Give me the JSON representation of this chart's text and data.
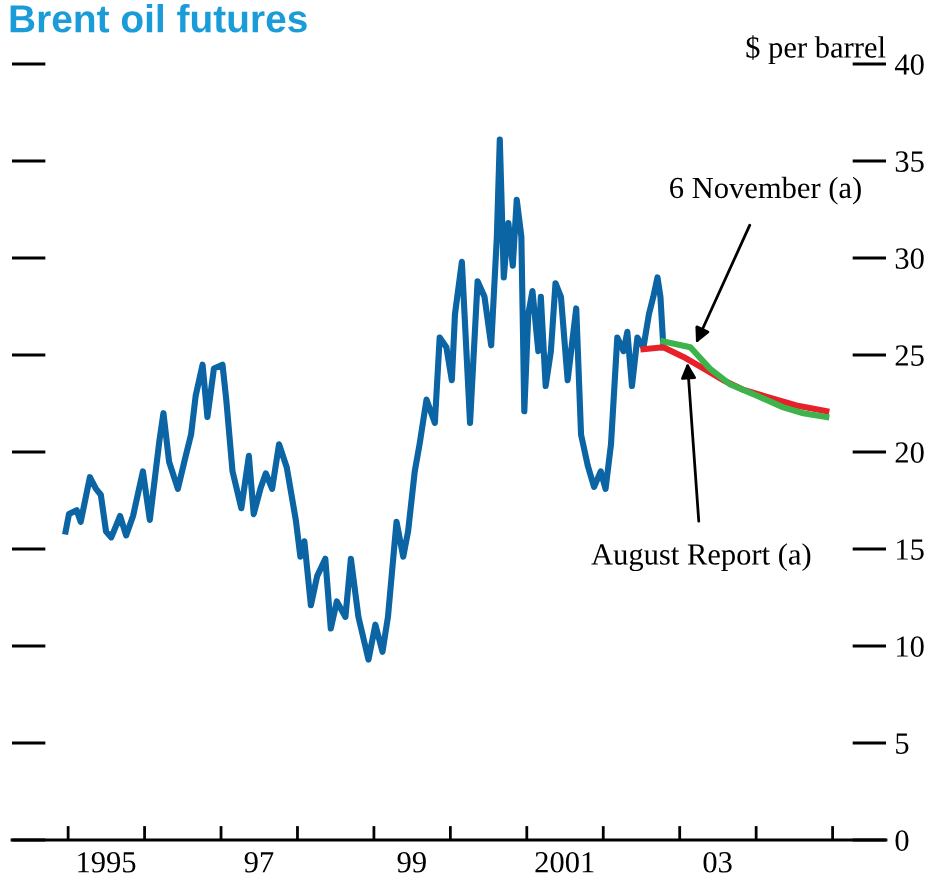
{
  "chart_data": {
    "type": "line",
    "title": "Brent oil futures",
    "ylabel": "$ per barrel",
    "xlim": [
      "1994-04-08",
      "2005-09-13"
    ],
    "ylim": [
      0,
      40
    ],
    "xticks": [
      {
        "value": "1995",
        "label": null
      },
      {
        "value": "1995-07",
        "label": "1995"
      },
      {
        "value": "1996",
        "label": null
      },
      {
        "value": "1997",
        "label": null
      },
      {
        "value": "1997-07",
        "label": "97"
      },
      {
        "value": "1998",
        "label": null
      },
      {
        "value": "1999",
        "label": null
      },
      {
        "value": "1999-07",
        "label": "99"
      },
      {
        "value": "2000",
        "label": null
      },
      {
        "value": "2001",
        "label": null
      },
      {
        "value": "2001-07",
        "label": "2001"
      },
      {
        "value": "2002",
        "label": null
      },
      {
        "value": "2003",
        "label": null
      },
      {
        "value": "2003-07",
        "label": "03"
      },
      {
        "value": "2004",
        "label": null
      },
      {
        "value": "2005",
        "label": null
      }
    ],
    "yticks": [
      0,
      5,
      10,
      15,
      20,
      25,
      30,
      35,
      40
    ],
    "grid": false,
    "legend": false,
    "marker": "none",
    "line_style": "solid",
    "series": [
      {
        "color": "#0b64a4",
        "x": [
          "1994-12-20",
          "1995-01-05",
          "1995-02-11",
          "1995-03-02",
          "1995-04-15",
          "1995-05-14",
          "1995-06-06",
          "1995-07-01",
          "1995-07-26",
          "1995-09-06",
          "1995-10-05",
          "1995-11-07",
          "1995-12-24",
          "1996-01-26",
          "1996-03-13",
          "1996-04-01",
          "1996-04-28",
          "1996-06-09",
          "1996-07-12",
          "1996-08-11",
          "1996-09-02",
          "1996-10-05",
          "1996-10-28",
          "1996-11-28",
          "1997-01-08",
          "1997-01-26",
          "1997-02-25",
          "1997-04-08",
          "1997-05-14",
          "1997-06-06",
          "1997-07-08",
          "1997-08-03",
          "1997-09-02",
          "1997-10-05",
          "1997-11-11",
          "1997-12-24",
          "1998-01-15",
          "1998-02-03",
          "1998-03-06",
          "1998-04-05",
          "1998-05-14",
          "1998-06-09",
          "1998-07-08",
          "1998-08-18",
          "1998-09-13",
          "1998-10-19",
          "1998-12-06",
          "1999-01-08",
          "1999-02-11",
          "1999-03-09",
          "1999-04-19",
          "1999-05-21",
          "1999-06-13",
          "1999-07-15",
          "1999-08-07",
          "1999-09-09",
          "1999-10-19",
          "1999-11-11",
          "1999-12-13",
          "2000-01-08",
          "2000-01-23",
          "2000-02-25",
          "2000-04-05",
          "2000-05-11",
          "2000-06-13",
          "2000-07-15",
          "2000-08-11",
          "2000-08-25",
          "2000-09-13",
          "2000-10-05",
          "2000-10-26",
          "2000-11-14",
          "2000-12-06",
          "2000-12-20",
          "2001-01-08",
          "2001-01-28",
          "2001-02-25",
          "2001-03-09",
          "2001-04-01",
          "2001-04-26",
          "2001-05-18",
          "2001-06-13",
          "2001-07-15",
          "2001-08-25",
          "2001-09-17",
          "2001-10-19",
          "2001-11-18",
          "2001-12-20",
          "2002-01-12",
          "2002-02-07",
          "2002-03-09",
          "2002-04-08",
          "2002-04-26",
          "2002-05-18",
          "2002-06-13",
          "2002-07-12",
          "2002-08-07",
          "2002-08-28",
          "2002-09-17",
          "2002-10-01",
          "2002-10-15"
        ],
        "values": [
          15.9,
          16.8,
          17.0,
          16.4,
          18.7,
          18.1,
          17.8,
          15.9,
          15.6,
          16.7,
          15.7,
          16.7,
          19.0,
          16.5,
          20.6,
          22.0,
          19.5,
          18.1,
          19.6,
          20.9,
          22.9,
          24.5,
          21.8,
          24.3,
          24.5,
          22.7,
          19.0,
          17.1,
          19.8,
          16.8,
          18.1,
          18.9,
          18.1,
          20.4,
          19.2,
          16.5,
          14.6,
          15.4,
          12.1,
          13.6,
          14.5,
          10.9,
          12.3,
          11.5,
          14.5,
          11.5,
          9.3,
          11.1,
          9.7,
          11.5,
          16.4,
          14.6,
          15.9,
          19.0,
          20.4,
          22.7,
          21.5,
          25.9,
          25.4,
          23.7,
          27.1,
          29.8,
          21.5,
          28.8,
          28.0,
          25.5,
          31.1,
          36.1,
          29.0,
          31.8,
          29.6,
          33.0,
          31.1,
          22.1,
          27.1,
          28.3,
          25.2,
          28.0,
          23.4,
          25.2,
          28.7,
          28.0,
          23.7,
          27.4,
          20.9,
          19.3,
          18.2,
          19.0,
          18.1,
          20.4,
          25.9,
          25.2,
          26.2,
          23.4,
          25.9,
          25.4,
          27.1,
          28.0,
          29.0,
          28.0,
          25.4
        ]
      },
      {
        "color": "#e8202a",
        "x": [
          "2002-07-12",
          "2002-10-15",
          "2003-01-19",
          "2003-04-26",
          "2003-07-28",
          "2003-11-03",
          "2004-03-06",
          "2004-07-12",
          "2004-12-02"
        ],
        "values": [
          25.3,
          25.4,
          24.9,
          24.3,
          23.7,
          23.2,
          22.8,
          22.4,
          22.1
        ]
      },
      {
        "color": "#3cb44b",
        "x": [
          "2002-10-15",
          "2003-02-21",
          "2003-05-25",
          "2003-08-28",
          "2004-01-05",
          "2004-05-11",
          "2004-08-14",
          "2004-12-02"
        ],
        "values": [
          25.7,
          25.4,
          24.3,
          23.5,
          22.9,
          22.3,
          22.0,
          21.8
        ]
      }
    ],
    "annotations": [
      {
        "text": "6 November (a)",
        "x": "2003-03-20",
        "y": 25.6
      },
      {
        "text": "August Report (a)",
        "x": "2003-02-07",
        "y": 24.6
      }
    ]
  }
}
